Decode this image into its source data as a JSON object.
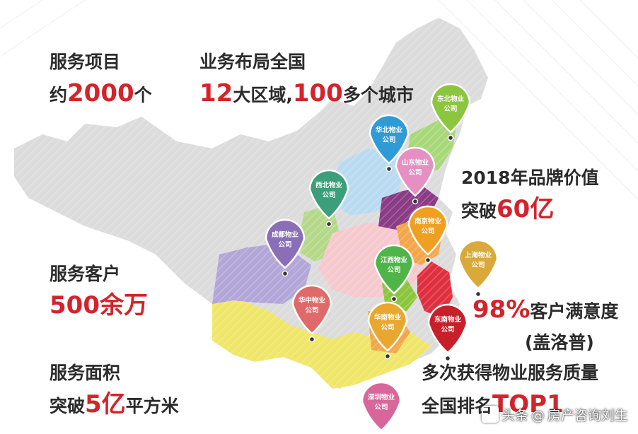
{
  "stats": {
    "items": {
      "label": "服务项目",
      "prefix": "约",
      "value": "2000",
      "suffix": "个"
    },
    "layout": {
      "label": "业务布局全国",
      "value1": "12",
      "text1": "大区域,",
      "value2": "100",
      "text2": "多个城市"
    },
    "brand": {
      "label": "2018年品牌价值",
      "prefix": "突破",
      "value": "60亿"
    },
    "customers": {
      "label": "服务客户",
      "value": "500余万"
    },
    "satisfaction": {
      "value": "98%",
      "label": "客户满意度",
      "source": "(盖洛普)"
    },
    "area": {
      "label": "服务面积",
      "prefix": "突破",
      "value": "5亿",
      "suffix": "平方米"
    },
    "quality": {
      "label": "多次获得物业服务质量",
      "prefix": "全国排名",
      "value": "TOP1"
    }
  },
  "companies": [
    {
      "line1": "东北物业",
      "line2": "公司",
      "color": "#8cc63f"
    },
    {
      "line1": "华北物业",
      "line2": "公司",
      "color": "#2f9bd6"
    },
    {
      "line1": "山东物业",
      "line2": "公司",
      "color": "#e58fc2"
    },
    {
      "line1": "西北物业",
      "line2": "公司",
      "color": "#3a9f7a"
    },
    {
      "line1": "成都物业",
      "line2": "公司",
      "color": "#8a6fb8"
    },
    {
      "line1": "南京物业",
      "line2": "公司",
      "color": "#f0a020"
    },
    {
      "line1": "上海物业",
      "line2": "公司",
      "color": "#d9a93a"
    },
    {
      "line1": "江西物业",
      "line2": "公司",
      "color": "#4fb548"
    },
    {
      "line1": "华中物业",
      "line2": "公司",
      "color": "#e06a6a"
    },
    {
      "line1": "华南物业",
      "line2": "公司",
      "color": "#e8a830"
    },
    {
      "line1": "东南物业",
      "line2": "公司",
      "color": "#c8202a"
    },
    {
      "line1": "深圳物业",
      "line2": "公司",
      "color": "#d9669a"
    }
  ],
  "watermark": {
    "brand": "头条",
    "at": "@",
    "author": "房产咨询刘生"
  },
  "colors": {
    "map_base": "#dcdcdc",
    "accent_red": "#d4232b",
    "text_dark": "#2b2b2b"
  }
}
